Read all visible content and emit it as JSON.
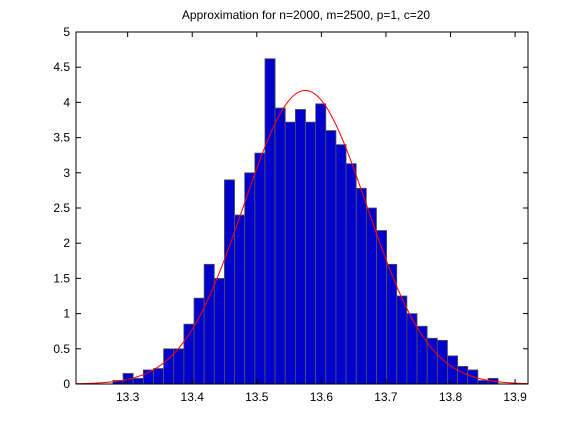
{
  "chart_data": {
    "type": "bar",
    "title": "Approximation for n=2000, m=2500, p=1, c=20",
    "xlabel": "",
    "ylabel": "",
    "xlim": [
      13.22,
      13.92
    ],
    "ylim": [
      0,
      5
    ],
    "xticks": [
      "13.3",
      "13.4",
      "13.5",
      "13.6",
      "13.7",
      "13.8",
      "13.9"
    ],
    "xtick_values": [
      13.3,
      13.4,
      13.5,
      13.6,
      13.7,
      13.8,
      13.9
    ],
    "yticks": [
      "0",
      "0.5",
      "1",
      "1.5",
      "2",
      "2.5",
      "3",
      "3.5",
      "4",
      "4.5",
      "5"
    ],
    "ytick_values": [
      0,
      0.5,
      1,
      1.5,
      2,
      2.5,
      3,
      3.5,
      4,
      4.5,
      5
    ],
    "grid": false,
    "bar_color": "#0000cc",
    "bar_edge_color": "#555555",
    "curve_color": "#ff0000",
    "bin_width": 0.0157,
    "bin_centers": [
      13.285,
      13.3007,
      13.3164,
      13.3321,
      13.3478,
      13.3635,
      13.3792,
      13.3949,
      13.4106,
      13.4263,
      13.442,
      13.4577,
      13.4734,
      13.4891,
      13.5048,
      13.5205,
      13.5362,
      13.5519,
      13.5676,
      13.5833,
      13.599,
      13.6147,
      13.6304,
      13.6461,
      13.6618,
      13.6775,
      13.6932,
      13.7089,
      13.7246,
      13.7403,
      13.756,
      13.7717,
      13.7874,
      13.8031,
      13.8188,
      13.8345,
      13.8502,
      13.8659
    ],
    "values": [
      0.05,
      0.15,
      0.08,
      0.2,
      0.22,
      0.5,
      0.5,
      0.85,
      1.22,
      1.7,
      1.5,
      2.9,
      2.4,
      3.0,
      3.28,
      4.62,
      3.92,
      3.72,
      3.9,
      3.72,
      3.98,
      3.6,
      3.4,
      3.13,
      2.78,
      2.5,
      2.18,
      1.7,
      1.25,
      1.0,
      0.82,
      0.65,
      0.62,
      0.4,
      0.25,
      0.2,
      0.05,
      0.08
    ],
    "series": [
      {
        "type": "line",
        "distribution": "normal",
        "mean": 13.575,
        "std": 0.0955,
        "peak": 4.17
      }
    ]
  }
}
